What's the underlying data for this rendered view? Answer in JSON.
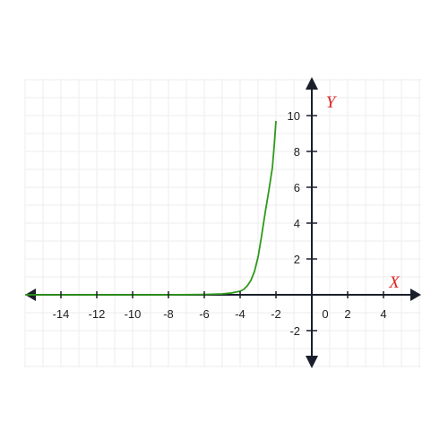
{
  "chart_data": {
    "type": "line",
    "function": "exponential",
    "xlabel": "X",
    "ylabel": "Y",
    "xlim": [
      -16,
      5.5
    ],
    "ylim": [
      -3.7,
      11.9
    ],
    "x_ticks": [
      -14,
      -12,
      -10,
      -8,
      -6,
      -4,
      -2,
      0,
      2,
      4
    ],
    "x_tick_labels": [
      "-14",
      "-12",
      "-10",
      "-8",
      "-6",
      "-4",
      "-2",
      "0",
      "2",
      "4"
    ],
    "y_ticks": [
      -2,
      2,
      4,
      6,
      8,
      10
    ],
    "y_tick_labels": [
      "-2",
      "2",
      "4",
      "6",
      "8",
      "10"
    ],
    "grid": true,
    "series": [
      {
        "x": [
          -16,
          -10,
          -8,
          -6,
          -5,
          -4.5,
          -4,
          -3.8,
          -3.6,
          -3.4,
          -3.2,
          -3,
          -2.8,
          -2.6,
          -2.4,
          -2.2,
          -2.1,
          -2
        ],
        "y": [
          0,
          0,
          0.002,
          0.02,
          0.05,
          0.1,
          0.2,
          0.3,
          0.5,
          0.8,
          1.3,
          2.1,
          3.3,
          4.6,
          5.8,
          7.1,
          8.3,
          9.7
        ],
        "color": "#2e9a1a"
      }
    ],
    "colors": {
      "axes": "#1a1f2b",
      "grid": "#eeeeee",
      "axis_label": "#dd2222",
      "curve": "#2e9a1a"
    }
  }
}
